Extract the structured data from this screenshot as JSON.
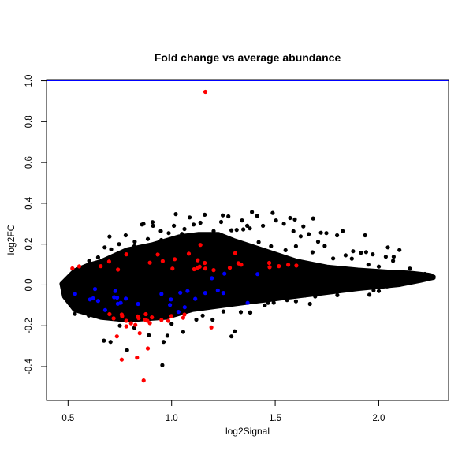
{
  "chart_data": {
    "type": "scatter",
    "title": "Fold change vs average abundance",
    "xlabel": "log2Signal",
    "ylabel": "log2FC",
    "xlim": [
      0.396,
      2.337
    ],
    "ylim": [
      -0.566,
      1.006
    ],
    "xticks": [
      "0.5",
      "1.0",
      "1.5",
      "2.0"
    ],
    "yticks": [
      "-0.4",
      "-0.2",
      "0.0",
      "0.2",
      "0.4",
      "0.6",
      "0.8",
      "1.0"
    ],
    "grid": false,
    "legend": "none",
    "reference_line": {
      "y": 1.0,
      "color": "#0000ff"
    },
    "colors": {
      "all": "#000000",
      "highlight_red": "#ff0000",
      "highlight_blue": "#0000ff"
    },
    "dense_region": {
      "upper": [
        [
          0.468,
          0.006
        ],
        [
          0.531,
          0.071
        ],
        [
          0.6,
          0.1
        ],
        [
          0.658,
          0.116
        ],
        [
          0.784,
          0.174
        ],
        [
          0.909,
          0.2
        ],
        [
          1.037,
          0.238
        ],
        [
          1.13,
          0.25
        ],
        [
          1.226,
          0.25
        ],
        [
          1.3,
          0.22
        ],
        [
          1.45,
          0.17
        ],
        [
          1.6,
          0.12
        ],
        [
          1.75,
          0.09
        ],
        [
          1.9,
          0.075
        ],
        [
          2.05,
          0.065
        ],
        [
          2.15,
          0.06
        ],
        [
          2.24,
          0.05
        ],
        [
          2.265,
          0.04
        ]
      ],
      "lower": [
        [
          0.468,
          0.006
        ],
        [
          0.481,
          -0.058
        ],
        [
          0.531,
          -0.123
        ],
        [
          0.658,
          -0.161
        ],
        [
          0.784,
          -0.174
        ],
        [
          0.973,
          -0.161
        ],
        [
          1.1,
          -0.123
        ],
        [
          1.289,
          -0.097
        ],
        [
          1.39,
          -0.084
        ],
        [
          1.5,
          -0.07
        ],
        [
          1.7,
          -0.045
        ],
        [
          1.9,
          -0.02
        ],
        [
          2.1,
          0.0
        ],
        [
          2.2,
          0.02
        ],
        [
          2.265,
          0.035
        ]
      ]
    },
    "series": [
      {
        "color": "#000000",
        "points": [
          [
            0.955,
            -0.393
          ],
          [
            1.02,
            0.347
          ],
          [
            1.087,
            0.331
          ],
          [
            1.16,
            0.344
          ],
          [
            1.247,
            0.341
          ],
          [
            1.274,
            0.336
          ],
          [
            0.857,
            0.296
          ],
          [
            0.864,
            0.299
          ],
          [
            0.908,
            0.308
          ],
          [
            0.91,
            0.29
          ],
          [
            0.7,
            0.237
          ],
          [
            0.778,
            0.243
          ],
          [
            0.677,
            0.184
          ],
          [
            0.602,
            0.118
          ],
          [
            0.533,
            -0.142
          ],
          [
            0.673,
            -0.273
          ],
          [
            0.705,
            -0.279
          ],
          [
            0.785,
            -0.319
          ],
          [
            0.961,
            -0.279
          ],
          [
            0.98,
            -0.249
          ],
          [
            0.89,
            -0.246
          ],
          [
            1.056,
            -0.23
          ],
          [
            1.289,
            -0.252
          ],
          [
            1.304,
            -0.227
          ],
          [
            1.379,
            -0.134
          ],
          [
            1.198,
            -0.17
          ],
          [
            1.119,
            -0.17
          ],
          [
            1.106,
            0.296
          ],
          [
            1.139,
            0.305
          ],
          [
            1.203,
            0.264
          ],
          [
            1.239,
            0.309
          ],
          [
            1.289,
            0.268
          ],
          [
            1.314,
            0.27
          ],
          [
            1.346,
            0.272
          ],
          [
            1.378,
            0.277
          ],
          [
            1.011,
            0.29
          ],
          [
            1.062,
            0.274
          ],
          [
            0.948,
            0.264
          ],
          [
            0.986,
            0.254
          ],
          [
            0.885,
            0.225
          ],
          [
            0.822,
            0.212
          ],
          [
            0.746,
            0.2
          ],
          [
            0.708,
            0.174
          ],
          [
            0.645,
            0.135
          ],
          [
            1.388,
            0.357
          ],
          [
            1.488,
            0.353
          ],
          [
            1.572,
            0.328
          ],
          [
            1.595,
            0.321
          ],
          [
            1.683,
            0.326
          ],
          [
            1.413,
            0.338
          ],
          [
            1.34,
            0.316
          ],
          [
            1.365,
            0.29
          ],
          [
            1.441,
            0.29
          ],
          [
            1.504,
            0.316
          ],
          [
            1.542,
            0.3
          ],
          [
            1.636,
            0.287
          ],
          [
            1.588,
            0.263
          ],
          [
            1.623,
            0.238
          ],
          [
            1.662,
            0.249
          ],
          [
            1.721,
            0.256
          ],
          [
            1.747,
            0.254
          ],
          [
            1.799,
            0.243
          ],
          [
            1.826,
            0.264
          ],
          [
            1.934,
            0.243
          ],
          [
            1.707,
            0.212
          ],
          [
            1.739,
            0.191
          ],
          [
            2.044,
            0.184
          ],
          [
            2.1,
            0.171
          ],
          [
            1.971,
            0.15
          ],
          [
            1.939,
            0.161
          ],
          [
            1.914,
            0.158
          ],
          [
            1.876,
            0.165
          ],
          [
            2.072,
            0.138
          ],
          [
            2.034,
            0.138
          ],
          [
            2.069,
            0.118
          ],
          [
            1.84,
            0.145
          ],
          [
            1.87,
            0.129
          ],
          [
            1.955,
            -0.048
          ],
          [
            1.668,
            -0.093
          ],
          [
            1.557,
            -0.074
          ],
          [
            1.493,
            -0.087
          ],
          [
            1.466,
            -0.088
          ],
          [
            1.38,
            -0.136
          ],
          [
            1.334,
            -0.133
          ],
          [
            2.265,
            0.04
          ],
          [
            2.249,
            0.049
          ],
          [
            2.223,
            0.054
          ],
          [
            2.097,
            0.058
          ],
          [
            2.135,
            0.053
          ],
          [
            2.04,
            -0.007
          ],
          [
            2.053,
            -0.004
          ],
          [
            1.975,
            -0.026
          ],
          [
            1.693,
            -0.056
          ],
          [
            1.643,
            -0.052
          ],
          [
            1.15,
            0.22
          ],
          [
            1.18,
            0.2
          ],
          [
            1.25,
            0.23
          ],
          [
            1.33,
            0.2
          ],
          [
            1.42,
            0.21
          ],
          [
            1.48,
            0.19
          ],
          [
            1.55,
            0.17
          ],
          [
            1.6,
            0.19
          ],
          [
            1.68,
            0.16
          ],
          [
            1.78,
            0.13
          ],
          [
            1.95,
            0.1
          ],
          [
            2.0,
            0.09
          ],
          [
            2.15,
            0.08
          ],
          [
            0.95,
            0.22
          ],
          [
            1.05,
            0.25
          ],
          [
            0.82,
            0.19
          ],
          [
            0.6,
            -0.15
          ],
          [
            0.75,
            -0.2
          ],
          [
            0.82,
            -0.21
          ],
          [
            1.0,
            -0.19
          ],
          [
            1.15,
            -0.15
          ],
          [
            1.25,
            -0.13
          ],
          [
            1.45,
            -0.1
          ],
          [
            1.6,
            -0.08
          ],
          [
            1.8,
            -0.05
          ],
          [
            2.0,
            -0.03
          ]
        ]
      },
      {
        "color": "#ff0000",
        "points": [
          [
            1.163,
            0.946
          ],
          [
            0.521,
            0.081
          ],
          [
            0.554,
            0.091
          ],
          [
            0.658,
            0.092
          ],
          [
            0.698,
            0.115
          ],
          [
            0.741,
            0.075
          ],
          [
            0.781,
            0.15
          ],
          [
            0.895,
            0.109
          ],
          [
            0.933,
            0.149
          ],
          [
            0.957,
            0.117
          ],
          [
            1.004,
            0.08
          ],
          [
            1.015,
            0.126
          ],
          [
            1.083,
            0.153
          ],
          [
            1.139,
            0.196
          ],
          [
            1.109,
            0.077
          ],
          [
            1.125,
            0.085
          ],
          [
            1.135,
            0.089
          ],
          [
            1.163,
            0.08
          ],
          [
            1.126,
            0.121
          ],
          [
            1.16,
            0.108
          ],
          [
            1.203,
            0.073
          ],
          [
            1.281,
            0.084
          ],
          [
            1.307,
            0.156
          ],
          [
            1.322,
            0.107
          ],
          [
            1.336,
            0.099
          ],
          [
            1.325,
            0.105
          ],
          [
            1.471,
            0.108
          ],
          [
            1.473,
            0.087
          ],
          [
            1.518,
            0.092
          ],
          [
            1.563,
            0.099
          ],
          [
            1.602,
            0.095
          ],
          [
            0.7,
            -0.143
          ],
          [
            0.72,
            -0.164
          ],
          [
            0.759,
            -0.145
          ],
          [
            0.761,
            -0.153
          ],
          [
            0.781,
            -0.176
          ],
          [
            0.781,
            -0.203
          ],
          [
            0.804,
            -0.188
          ],
          [
            0.825,
            -0.196
          ],
          [
            0.836,
            -0.154
          ],
          [
            0.841,
            -0.163
          ],
          [
            0.846,
            -0.236
          ],
          [
            0.875,
            -0.143
          ],
          [
            0.872,
            -0.17
          ],
          [
            0.883,
            -0.176
          ],
          [
            0.895,
            -0.187
          ],
          [
            0.905,
            -0.159
          ],
          [
            0.951,
            -0.172
          ],
          [
            0.984,
            -0.176
          ],
          [
            0.999,
            -0.152
          ],
          [
            1.056,
            -0.161
          ],
          [
            1.062,
            -0.145
          ],
          [
            0.736,
            -0.252
          ],
          [
            0.885,
            -0.311
          ],
          [
            0.833,
            -0.356
          ],
          [
            0.759,
            -0.366
          ],
          [
            0.865,
            -0.468
          ],
          [
            1.192,
            -0.208
          ]
        ]
      },
      {
        "color": "#0000ff",
        "points": [
          [
            0.534,
            -0.044
          ],
          [
            0.63,
            -0.02
          ],
          [
            0.606,
            -0.071
          ],
          [
            0.621,
            -0.066
          ],
          [
            0.645,
            -0.078
          ],
          [
            0.679,
            -0.123
          ],
          [
            0.728,
            -0.03
          ],
          [
            0.722,
            -0.06
          ],
          [
            0.737,
            -0.062
          ],
          [
            0.74,
            -0.092
          ],
          [
            0.754,
            -0.088
          ],
          [
            0.779,
            -0.067
          ],
          [
            0.838,
            -0.093
          ],
          [
            0.951,
            -0.044
          ],
          [
            0.997,
            -0.071
          ],
          [
            0.992,
            -0.098
          ],
          [
            1.033,
            -0.132
          ],
          [
            1.042,
            -0.038
          ],
          [
            1.063,
            -0.109
          ],
          [
            1.077,
            -0.03
          ],
          [
            1.114,
            -0.068
          ],
          [
            1.162,
            -0.039
          ],
          [
            1.194,
            0.033
          ],
          [
            1.223,
            -0.027
          ],
          [
            1.25,
            -0.039
          ],
          [
            1.255,
            0.055
          ],
          [
            1.367,
            -0.088
          ],
          [
            1.415,
            0.053
          ]
        ]
      }
    ]
  }
}
